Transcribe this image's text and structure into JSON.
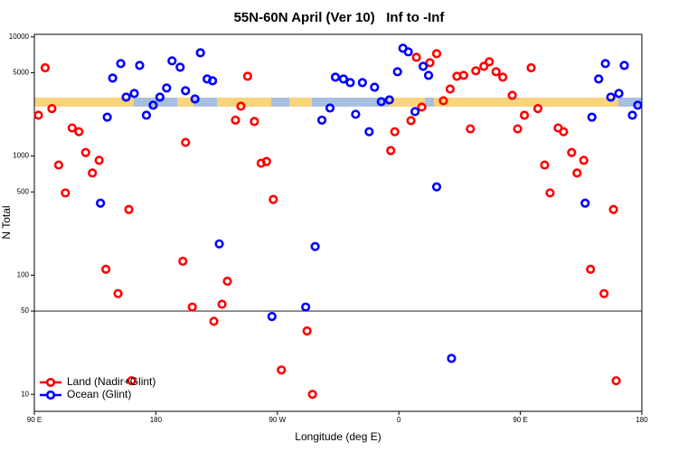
{
  "chart_data": {
    "type": "scatter",
    "title": "55N-60N April (Ver 10)   Inf to -Inf",
    "xlabel": "Longitude (deg E)",
    "ylabel": "N Total",
    "xlim": [
      90,
      540
    ],
    "ylim": [
      7.2,
      10500
    ],
    "log_y": true,
    "xticks": [
      {
        "value": 90,
        "label": "90 E"
      },
      180,
      {
        "value": 270,
        "label": "90 W"
      },
      {
        "value": 360,
        "label": "0"
      },
      {
        "value": 450,
        "label": "90 E"
      },
      {
        "value": 540,
        "label": "180"
      }
    ],
    "yticks": [
      10,
      50,
      100,
      500,
      1000,
      5000,
      10000
    ],
    "hline": 50,
    "legend": "bottom left",
    "series": [
      {
        "name": "Land (Nadir+Glint)",
        "color": "#ff0000",
        "x": [
          93,
          98,
          103,
          108,
          113,
          118,
          123,
          128,
          133,
          138,
          143,
          152,
          160,
          162,
          200,
          202,
          207,
          223,
          229,
          233,
          239,
          243,
          248,
          253,
          258,
          262,
          267,
          273,
          292,
          296,
          354,
          357,
          369,
          373,
          377,
          383,
          388,
          393,
          398,
          403,
          408,
          413,
          417,
          423,
          427,
          432,
          437,
          444,
          448,
          453,
          458,
          463,
          468,
          472,
          478,
          482,
          488,
          492,
          497,
          502,
          512,
          519,
          521
        ],
        "values": [
          2200,
          5500,
          2500,
          840,
          490,
          1720,
          1600,
          1070,
          720,
          920,
          112,
          70,
          356,
          13,
          131,
          1300,
          54,
          41,
          57,
          89,
          2000,
          2620,
          4670,
          1950,
          870,
          900,
          432,
          16,
          34,
          10,
          1110,
          1600,
          1980,
          6740,
          2575,
          6070,
          7230,
          2910,
          3650,
          4670,
          4750,
          1690,
          5190,
          5660,
          6180,
          5100,
          4590,
          3230,
          1690,
          2200,
          5500,
          2500,
          840,
          490,
          1720,
          1600,
          1070,
          720,
          920,
          112,
          70,
          356,
          13
        ]
      },
      {
        "name": "Ocean (Glint)",
        "color": "#0000ff",
        "x": [
          139,
          144,
          148,
          154,
          158,
          164,
          168,
          173,
          178,
          183,
          188,
          192,
          198,
          202,
          209,
          213,
          218,
          222,
          227,
          266,
          291,
          298,
          303,
          309,
          313,
          319,
          324,
          328,
          333,
          338,
          342,
          347,
          353,
          359,
          363,
          367,
          372,
          378,
          382,
          388,
          399,
          498,
          503,
          508,
          513,
          517,
          523,
          527,
          533,
          537
        ],
        "values": [
          402,
          2120,
          4510,
          5970,
          3120,
          3350,
          5760,
          2200,
          2670,
          3120,
          3720,
          6290,
          5560,
          3530,
          3010,
          7360,
          4430,
          4280,
          183,
          45,
          54,
          174,
          2000,
          2530,
          4590,
          4430,
          4130,
          2240,
          4130,
          1600,
          3780,
          2860,
          2960,
          5100,
          8030,
          7490,
          2360,
          5660,
          4750,
          551,
          20,
          402,
          2120,
          4430,
          5970,
          3120,
          3350,
          5760,
          2200,
          2670
        ]
      }
    ]
  }
}
